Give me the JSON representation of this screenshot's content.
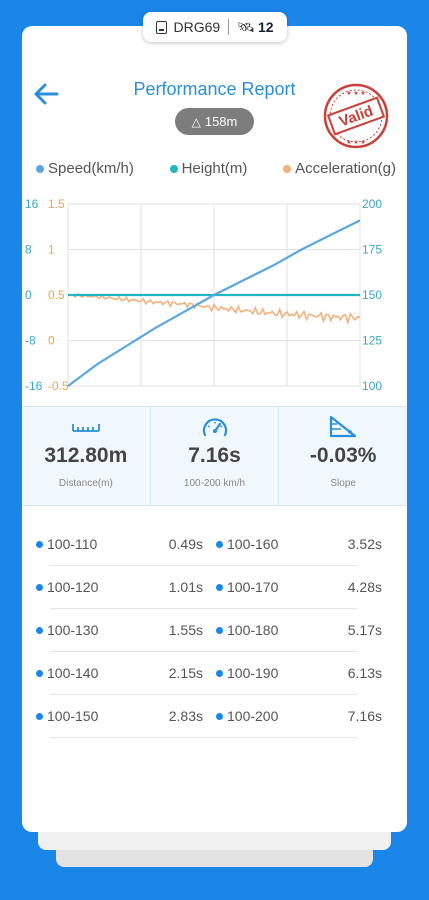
{
  "device": {
    "name": "DRG69",
    "satellites": "12",
    "icon": "device-icon",
    "sat_icon": "satellite-icon"
  },
  "header": {
    "title": "Performance Report",
    "stamp": "Valid",
    "altitude": "158m"
  },
  "legend": [
    {
      "label": "Speed(km/h)",
      "color": "#5aa7e0"
    },
    {
      "label": "Height(m)",
      "color": "#1fb7c2"
    },
    {
      "label": "Acceleration(g)",
      "color": "#f2b27c"
    }
  ],
  "chart_data": {
    "type": "line",
    "axes": {
      "left_height": {
        "ticks": [
          "16",
          "8",
          "0",
          "-8",
          "-16"
        ],
        "range": [
          -16,
          16
        ],
        "color": "#3aa6c8"
      },
      "left_accel": {
        "ticks": [
          "1.5",
          "1",
          "0.5",
          "0",
          "-0.5"
        ],
        "range": [
          -0.5,
          1.5
        ],
        "color": "#f0a24e"
      },
      "right_speed": {
        "ticks": [
          "200",
          "175",
          "150",
          "125",
          "100"
        ],
        "range": [
          100,
          200
        ],
        "color": "#3aa6c8"
      }
    },
    "grid": true,
    "series": [
      {
        "name": "Speed(km/h)",
        "color": "#5aa7e0",
        "x": [
          0,
          0.1,
          0.2,
          0.3,
          0.4,
          0.5,
          0.6,
          0.7,
          0.8,
          0.9,
          1.0
        ],
        "values": [
          100,
          112,
          122,
          132,
          141,
          150,
          158,
          166,
          175,
          183,
          191
        ]
      },
      {
        "name": "Height(m)",
        "color": "#1fb7c2",
        "x": [
          0,
          1
        ],
        "values": [
          0,
          0
        ]
      },
      {
        "name": "Acceleration(g)",
        "color": "#f2b27c",
        "x": [
          0,
          0.1,
          0.2,
          0.3,
          0.4,
          0.5,
          0.6,
          0.7,
          0.8,
          0.9,
          1.0
        ],
        "values": [
          0.5,
          0.48,
          0.45,
          0.42,
          0.4,
          0.36,
          0.33,
          0.3,
          0.28,
          0.26,
          0.25
        ]
      }
    ]
  },
  "stats": [
    {
      "value": "312.80m",
      "label": "Distance(m)",
      "icon": "ruler-icon"
    },
    {
      "value": "7.16s",
      "label": "100-200 km/h",
      "icon": "speedometer-icon"
    },
    {
      "value": "-0.03%",
      "label": "Slope",
      "icon": "slope-icon"
    }
  ],
  "splits": [
    [
      {
        "range": "100-110",
        "time": "0.49s"
      },
      {
        "range": "100-160",
        "time": "3.52s"
      }
    ],
    [
      {
        "range": "100-120",
        "time": "1.01s"
      },
      {
        "range": "100-170",
        "time": "4.28s"
      }
    ],
    [
      {
        "range": "100-130",
        "time": "1.55s"
      },
      {
        "range": "100-180",
        "time": "5.17s"
      }
    ],
    [
      {
        "range": "100-140",
        "time": "2.15s"
      },
      {
        "range": "100-190",
        "time": "6.13s"
      }
    ],
    [
      {
        "range": "100-150",
        "time": "2.83s"
      },
      {
        "range": "100-200",
        "time": "7.16s"
      }
    ]
  ]
}
